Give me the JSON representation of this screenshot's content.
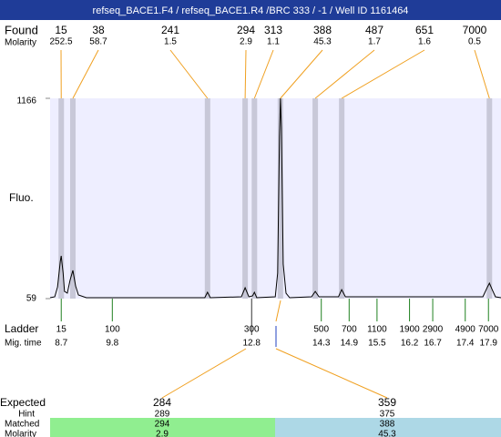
{
  "title": "refseq_BACE1.F4 / refseq_BACE1.R4 /BRC 333 / -1 / Well ID 1161464",
  "found": {
    "label": "Found",
    "values": [
      15,
      38,
      241,
      294,
      313,
      388,
      487,
      651,
      7000
    ]
  },
  "molarity": {
    "label": "Molarity",
    "values": [
      252.5,
      58.7,
      1.5,
      2.9,
      1.1,
      45.3,
      1.7,
      1.6,
      0.5
    ]
  },
  "plot": {
    "ylabel": "Fluo.",
    "ylim": [
      59,
      1166
    ],
    "yticks": [
      59,
      1166
    ],
    "xlim": [
      8.46,
      18.17
    ],
    "peak_times": [
      8.7,
      8.95,
      11.85,
      12.66,
      12.86,
      13.42,
      14.17,
      14.74,
      17.92
    ],
    "trace": {
      "x": [
        8.46,
        8.56,
        8.62,
        8.68,
        8.7,
        8.74,
        8.77,
        8.83,
        8.89,
        8.95,
        9.01,
        9.07,
        9.24,
        11.79,
        11.85,
        11.91,
        12.58,
        12.66,
        12.74,
        12.82,
        12.86,
        12.91,
        13.31,
        13.36,
        13.4,
        13.42,
        13.44,
        13.48,
        13.54,
        13.62,
        14.09,
        14.17,
        14.25,
        14.67,
        14.74,
        14.82,
        17.78,
        17.88,
        17.92,
        17.98,
        18.05,
        18.17
      ],
      "y": [
        64,
        69,
        124,
        265,
        295,
        200,
        99,
        89,
        160,
        215,
        129,
        79,
        64,
        64,
        94,
        64,
        69,
        119,
        69,
        74,
        94,
        64,
        69,
        200,
        955,
        1166,
        1005,
        250,
        89,
        64,
        69,
        99,
        69,
        69,
        109,
        69,
        69,
        124,
        144,
        109,
        69,
        64
      ]
    }
  },
  "ladder": {
    "label": "Ladder",
    "sizes": [
      15,
      100,
      300,
      500,
      700,
      1100,
      1900,
      2900,
      4900,
      7000
    ],
    "time_label": "Mig. time",
    "times": [
      8.7,
      9.8,
      12.8,
      14.3,
      14.9,
      15.5,
      16.2,
      16.7,
      17.4,
      17.9
    ]
  },
  "expected": {
    "label": "Expected",
    "values": [
      284,
      359
    ],
    "hint_label": "Hint",
    "hint": [
      289,
      375
    ],
    "matched_label": "Matched",
    "matched": [
      294,
      388
    ],
    "molarity_label": "Molarity",
    "molarity": [
      2.9,
      45.3
    ]
  }
}
